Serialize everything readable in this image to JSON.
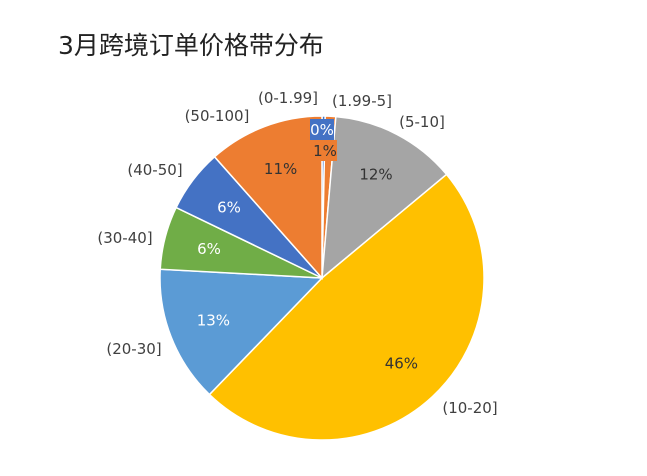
{
  "chart_data": {
    "type": "pie",
    "title": "3月跨境订单价格带分布",
    "categories": [
      "(0-1.99]",
      "(1.99-5]",
      "(5-10]",
      "(10-20]",
      "(20-30]",
      "(30-40]",
      "(40-50]",
      "(50-100]"
    ],
    "values": [
      0.3,
      1,
      12,
      46,
      13,
      6,
      6,
      11
    ],
    "value_labels": [
      "0%",
      "1%",
      "12%",
      "46%",
      "13%",
      "6%",
      "6%",
      "11%"
    ],
    "colors": [
      "#4472c4",
      "#ed7d31",
      "#a5a5a5",
      "#ffc000",
      "#5b9bd5",
      "#70ad47",
      "#4472c4",
      "#ed7d31"
    ],
    "start_angle": "12 o'clock",
    "direction": "clockwise",
    "legend": "none"
  }
}
